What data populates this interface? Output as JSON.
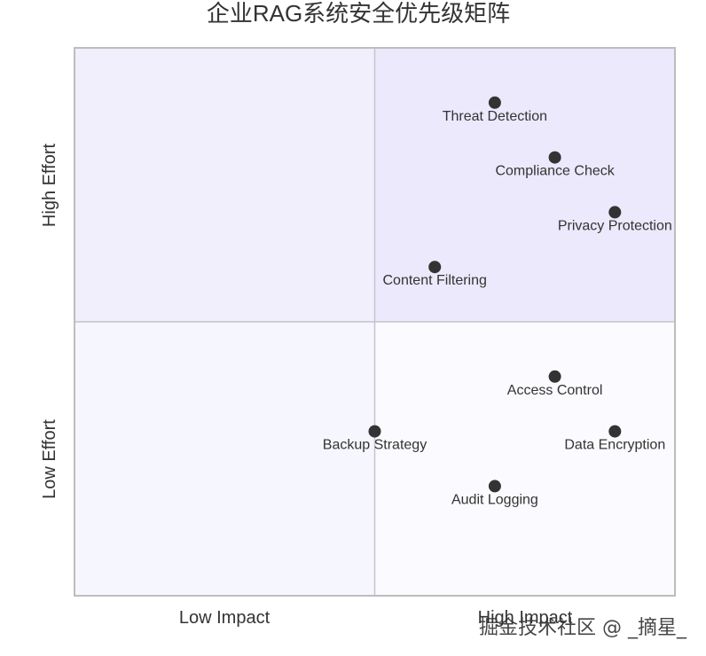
{
  "chart_data": {
    "type": "scatter",
    "title": "企业RAG系统安全优先级矩阵",
    "x_quadrant_labels": [
      "Low Impact",
      "High Impact"
    ],
    "y_quadrant_labels": [
      "Low Effort",
      "High Effort"
    ],
    "xlim": [
      0,
      1
    ],
    "ylim": [
      0,
      1
    ],
    "quadrant_colors": {
      "top_left": "#f0effb",
      "top_right": "#ebe9fb",
      "bottom_left": "#f6f6fe",
      "bottom_right": "#fbfbff"
    },
    "point_color": "#333333",
    "points": [
      {
        "label": "Threat Detection",
        "x": 0.7,
        "y": 0.9
      },
      {
        "label": "Compliance Check",
        "x": 0.8,
        "y": 0.8
      },
      {
        "label": "Privacy Protection",
        "x": 0.9,
        "y": 0.7
      },
      {
        "label": "Content Filtering",
        "x": 0.6,
        "y": 0.6
      },
      {
        "label": "Access Control",
        "x": 0.8,
        "y": 0.4
      },
      {
        "label": "Data Encryption",
        "x": 0.9,
        "y": 0.3
      },
      {
        "label": "Backup Strategy",
        "x": 0.5,
        "y": 0.3
      },
      {
        "label": "Audit Logging",
        "x": 0.7,
        "y": 0.2
      }
    ]
  },
  "watermark": "掘金技术社区 @ _摘星_"
}
